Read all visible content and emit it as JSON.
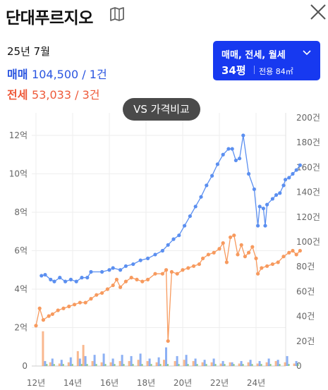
{
  "header": {
    "title": "단대푸르지오",
    "map_icon": "map-icon",
    "close_icon": "close-icon"
  },
  "summary": {
    "date": "25년 7월",
    "sale_label": "매매",
    "sale_value": "104,500 / 1건",
    "jeonse_label": "전세",
    "jeonse_value": "53,033 / 3건"
  },
  "filter": {
    "types": "매매, 전세, 월세",
    "size": "34평",
    "area": "전용 84㎡",
    "chevron_icon": "chevron-down-icon"
  },
  "compare_button": "VS 가격비교",
  "colors": {
    "sale": "#5b8ff0",
    "jeonse": "#f79a5e",
    "accent": "#1739f0"
  },
  "chart_data": {
    "type": "line",
    "x_ticks": [
      "12년",
      "14년",
      "16년",
      "18년",
      "20년",
      "22년",
      "24년"
    ],
    "x_range": [
      2011.8,
      2025.8
    ],
    "y_left_ticks": [
      "0",
      "2억",
      "4억",
      "6억",
      "8억",
      "10억",
      "12억"
    ],
    "y_left_range": [
      0,
      12.8
    ],
    "y_right_ticks": [
      "0",
      "20건",
      "40건",
      "60건",
      "80건",
      "100건",
      "120건",
      "140건",
      "160건",
      "180건",
      "200건"
    ],
    "y_right_range": [
      0,
      200
    ],
    "grid": true,
    "series": [
      {
        "values": [
          [
            2012.3,
            4.7
          ],
          [
            2012.5,
            4.75
          ],
          [
            2012.8,
            4.5
          ],
          [
            2013.0,
            4.4
          ],
          [
            2013.3,
            4.6
          ],
          [
            2013.6,
            4.4
          ],
          [
            2013.9,
            4.5
          ],
          [
            2014.2,
            4.4
          ],
          [
            2014.5,
            4.6
          ],
          [
            2014.8,
            4.6
          ],
          [
            2015.0,
            4.9
          ],
          [
            2015.6,
            4.9
          ],
          [
            2016.0,
            5.0
          ],
          [
            2016.2,
            5.1
          ],
          [
            2016.6,
            5.0
          ],
          [
            2016.9,
            5.2
          ],
          [
            2017.3,
            5.3
          ],
          [
            2017.7,
            5.5
          ],
          [
            2018.1,
            5.6
          ],
          [
            2018.5,
            5.8
          ],
          [
            2018.9,
            6.0
          ],
          [
            2019.2,
            6.3
          ],
          [
            2019.5,
            6.6
          ],
          [
            2019.8,
            6.8
          ],
          [
            2020.1,
            7.3
          ],
          [
            2020.4,
            7.8
          ],
          [
            2020.7,
            8.3
          ],
          [
            2021.0,
            8.8
          ],
          [
            2021.3,
            9.4
          ],
          [
            2021.6,
            9.9
          ],
          [
            2021.9,
            10.5
          ],
          [
            2022.2,
            11.0
          ],
          [
            2022.5,
            11.3
          ],
          [
            2022.7,
            11.3
          ],
          [
            2022.9,
            10.7
          ],
          [
            2023.1,
            10.8
          ],
          [
            2023.3,
            12.0
          ],
          [
            2023.6,
            10.0
          ],
          [
            2023.9,
            9.2
          ],
          [
            2024.1,
            7.3
          ],
          [
            2024.2,
            8.3
          ],
          [
            2024.4,
            8.2
          ],
          [
            2024.5,
            7.3
          ],
          [
            2024.6,
            8.4
          ],
          [
            2024.9,
            8.7
          ],
          [
            2025.1,
            8.9
          ],
          [
            2025.3,
            9.0
          ],
          [
            2025.5,
            9.4
          ],
          [
            2025.6,
            9.7
          ],
          [
            2025.8,
            9.8
          ],
          [
            2026.0,
            10.0
          ],
          [
            2026.2,
            10.2
          ],
          [
            2026.4,
            10.45
          ]
        ]
      },
      {
        "values": [
          [
            2012.0,
            2.1
          ],
          [
            2012.2,
            3.0
          ],
          [
            2012.4,
            2.4
          ],
          [
            2012.7,
            2.6
          ],
          [
            2012.9,
            2.7
          ],
          [
            2013.2,
            2.9
          ],
          [
            2013.5,
            3.0
          ],
          [
            2013.8,
            3.1
          ],
          [
            2014.1,
            3.2
          ],
          [
            2014.4,
            3.3
          ],
          [
            2014.7,
            3.3
          ],
          [
            2015.0,
            3.5
          ],
          [
            2015.3,
            3.7
          ],
          [
            2015.6,
            3.8
          ],
          [
            2015.9,
            4.0
          ],
          [
            2016.2,
            4.2
          ],
          [
            2016.4,
            4.5
          ],
          [
            2016.6,
            4.1
          ],
          [
            2016.9,
            4.4
          ],
          [
            2017.2,
            4.6
          ],
          [
            2017.5,
            4.5
          ],
          [
            2017.8,
            4.4
          ],
          [
            2018.1,
            4.5
          ],
          [
            2018.5,
            4.8
          ],
          [
            2018.9,
            4.8
          ],
          [
            2019.1,
            5.0
          ],
          [
            2019.2,
            1.3
          ],
          [
            2019.4,
            4.9
          ],
          [
            2019.7,
            4.8
          ],
          [
            2020.0,
            5.0
          ],
          [
            2020.3,
            5.1
          ],
          [
            2020.6,
            5.2
          ],
          [
            2020.9,
            5.3
          ],
          [
            2021.1,
            5.6
          ],
          [
            2021.4,
            5.8
          ],
          [
            2021.7,
            5.9
          ],
          [
            2022.0,
            6.1
          ],
          [
            2022.2,
            6.4
          ],
          [
            2022.4,
            5.4
          ],
          [
            2022.6,
            6.7
          ],
          [
            2022.8,
            6.8
          ],
          [
            2023.0,
            5.8
          ],
          [
            2023.2,
            6.3
          ],
          [
            2023.4,
            5.7
          ],
          [
            2023.6,
            5.9
          ],
          [
            2023.8,
            6.2
          ],
          [
            2024.0,
            5.6
          ],
          [
            2024.1,
            4.8
          ],
          [
            2024.3,
            5.1
          ],
          [
            2024.6,
            5.2
          ],
          [
            2024.9,
            5.3
          ],
          [
            2025.2,
            5.4
          ],
          [
            2025.5,
            5.7
          ],
          [
            2025.8,
            5.9
          ],
          [
            2026.0,
            6.0
          ],
          [
            2026.2,
            5.8
          ],
          [
            2026.4,
            6.0
          ]
        ]
      }
    ],
    "volume_bars": [
      {
        "x": 2012.4,
        "sale": 4,
        "jeonse": 28
      },
      {
        "x": 2012.8,
        "sale": 6,
        "jeonse": 3
      },
      {
        "x": 2013.3,
        "sale": 5,
        "jeonse": 2
      },
      {
        "x": 2013.8,
        "sale": 7,
        "jeonse": 3
      },
      {
        "x": 2014.3,
        "sale": 6,
        "jeonse": 12
      },
      {
        "x": 2014.6,
        "sale": 8,
        "jeonse": 17
      },
      {
        "x": 2015.1,
        "sale": 9,
        "jeonse": 4
      },
      {
        "x": 2015.6,
        "sale": 10,
        "jeonse": 3
      },
      {
        "x": 2016.1,
        "sale": 6,
        "jeonse": 3
      },
      {
        "x": 2016.6,
        "sale": 9,
        "jeonse": 4
      },
      {
        "x": 2017.1,
        "sale": 8,
        "jeonse": 4
      },
      {
        "x": 2017.6,
        "sale": 10,
        "jeonse": 5
      },
      {
        "x": 2018.1,
        "sale": 6,
        "jeonse": 4
      },
      {
        "x": 2018.6,
        "sale": 7,
        "jeonse": 3
      },
      {
        "x": 2019.0,
        "sale": 15,
        "jeonse": 5
      },
      {
        "x": 2019.6,
        "sale": 8,
        "jeonse": 4
      },
      {
        "x": 2020.1,
        "sale": 9,
        "jeonse": 5
      },
      {
        "x": 2020.6,
        "sale": 6,
        "jeonse": 4
      },
      {
        "x": 2021.1,
        "sale": 5,
        "jeonse": 3
      },
      {
        "x": 2021.6,
        "sale": 6,
        "jeonse": 3
      },
      {
        "x": 2022.1,
        "sale": 4,
        "jeonse": 2
      },
      {
        "x": 2022.6,
        "sale": 3,
        "jeonse": 3
      },
      {
        "x": 2023.1,
        "sale": 4,
        "jeonse": 2
      },
      {
        "x": 2023.6,
        "sale": 5,
        "jeonse": 3
      },
      {
        "x": 2024.1,
        "sale": 4,
        "jeonse": 2
      },
      {
        "x": 2024.6,
        "sale": 6,
        "jeonse": 3
      },
      {
        "x": 2025.1,
        "sale": 5,
        "jeonse": 4
      },
      {
        "x": 2025.6,
        "sale": 8,
        "jeonse": 3
      },
      {
        "x": 2026.1,
        "sale": 4,
        "jeonse": 2
      }
    ]
  }
}
